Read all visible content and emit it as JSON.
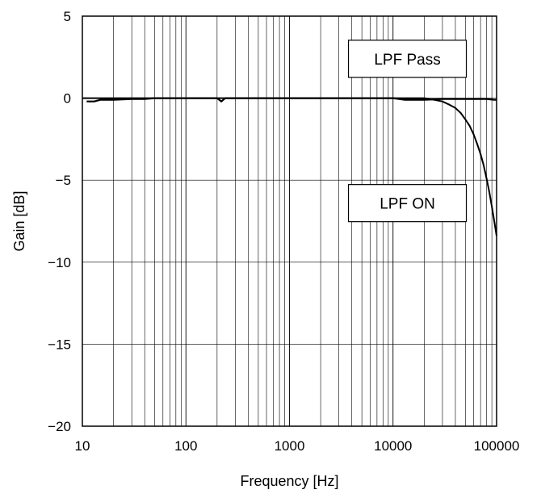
{
  "chart_data": {
    "type": "line",
    "title": "",
    "xlabel": "Frequency [Hz]",
    "ylabel": "Gain [dB]",
    "x_scale": "log",
    "xlim": [
      10,
      100000
    ],
    "ylim": [
      -20,
      5
    ],
    "x_ticks": [
      {
        "value": 10,
        "label": "10"
      },
      {
        "value": 100,
        "label": "100"
      },
      {
        "value": 1000,
        "label": "1000"
      },
      {
        "value": 10000,
        "label": "10000"
      },
      {
        "value": 100000,
        "label": "100000"
      }
    ],
    "y_ticks": [
      {
        "value": 5,
        "label": "5"
      },
      {
        "value": 0,
        "label": "0"
      },
      {
        "value": -5,
        "label": "−5"
      },
      {
        "value": -10,
        "label": "−10"
      },
      {
        "value": -15,
        "label": "−15"
      },
      {
        "value": -20,
        "label": "−20"
      }
    ],
    "grid": {
      "x_minor": true,
      "y_major": true
    },
    "series": [
      {
        "annotation": "LPF Pass",
        "color": "#000000",
        "x": [
          11,
          13,
          15,
          20,
          30,
          40,
          50,
          100,
          200,
          220,
          240,
          300,
          1000,
          5000,
          10000,
          13000,
          20000,
          30000,
          50000,
          80000,
          95000,
          100000
        ],
        "y": [
          -0.2,
          -0.2,
          -0.1,
          -0.1,
          -0.05,
          -0.05,
          0,
          0,
          0,
          -0.2,
          0,
          0,
          0,
          0,
          0,
          -0.1,
          -0.1,
          -0.05,
          -0.05,
          -0.05,
          -0.1,
          -0.1
        ]
      },
      {
        "annotation": "LPF ON",
        "color": "#000000",
        "x": [
          10,
          100,
          1000,
          10000,
          20000,
          25000,
          30000,
          35000,
          40000,
          45000,
          50000,
          55000,
          60000,
          65000,
          70000,
          75000,
          80000,
          85000,
          90000,
          95000,
          100000
        ],
        "y": [
          0,
          0,
          0,
          0,
          0,
          -0.1,
          -0.2,
          -0.4,
          -0.6,
          -0.9,
          -1.3,
          -1.7,
          -2.2,
          -2.8,
          -3.4,
          -4.1,
          -4.9,
          -5.7,
          -6.6,
          -7.5,
          -8.4
        ]
      }
    ],
    "annotations": [
      {
        "text": "LPF Pass",
        "x": 2500,
        "y": 2.4
      },
      {
        "text": "LPF ON",
        "x": 2500,
        "y": -6.4
      }
    ]
  }
}
